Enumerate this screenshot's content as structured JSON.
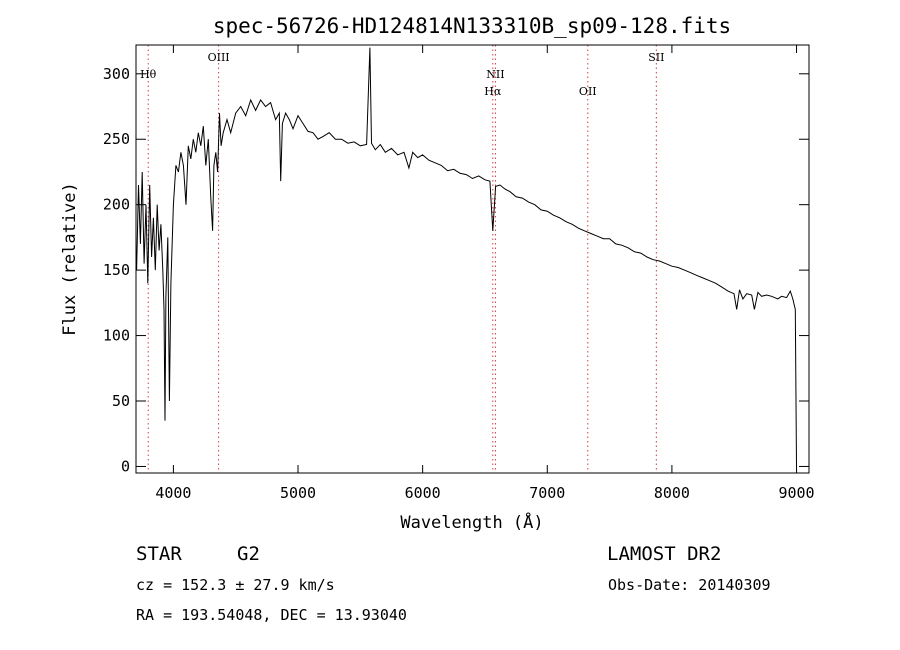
{
  "chart_data": {
    "type": "line",
    "title": "spec-56726-HD124814N133310B_sp09-128.fits",
    "xlabel": "Wavelength (Å)",
    "ylabel": "Flux (relative)",
    "xlim": [
      3700,
      9100
    ],
    "ylim": [
      -5,
      322
    ],
    "x_ticks": [
      4000,
      5000,
      6000,
      7000,
      8000,
      9000
    ],
    "y_ticks": [
      0,
      50,
      100,
      150,
      200,
      250,
      300
    ],
    "grid": false,
    "line_color": "#000000",
    "marker_color": "#d04040",
    "lines": [
      {
        "label": "Hθ",
        "wavelength": 3798,
        "row": 1
      },
      {
        "label": "OIII",
        "wavelength": 4363,
        "row": 0
      },
      {
        "label": "NII",
        "wavelength": 6584,
        "row": 1
      },
      {
        "label": "Hα",
        "wavelength": 6563,
        "row": 2
      },
      {
        "label": "OII",
        "wavelength": 7325,
        "row": 2
      },
      {
        "label": "SII",
        "wavelength": 7875,
        "row": 0
      }
    ],
    "series": [
      {
        "x": [
          3705,
          3720,
          3735,
          3750,
          3765,
          3780,
          3795,
          3810,
          3825,
          3840,
          3855,
          3870,
          3885,
          3900,
          3915,
          3925,
          3933,
          3940,
          3955,
          3968,
          3980,
          4000,
          4020,
          4040,
          4060,
          4080,
          4101,
          4120,
          4140,
          4160,
          4180,
          4200,
          4220,
          4240,
          4260,
          4280,
          4300,
          4315,
          4325,
          4340,
          4355,
          4370,
          4383,
          4400,
          4430,
          4460,
          4500,
          4540,
          4580,
          4620,
          4660,
          4700,
          4740,
          4780,
          4820,
          4850,
          4861,
          4875,
          4900,
          4930,
          4960,
          5000,
          5040,
          5080,
          5120,
          5160,
          5200,
          5250,
          5300,
          5350,
          5400,
          5450,
          5500,
          5550,
          5577,
          5590,
          5620,
          5660,
          5700,
          5750,
          5800,
          5850,
          5890,
          5920,
          5960,
          6000,
          6050,
          6100,
          6150,
          6200,
          6250,
          6300,
          6350,
          6400,
          6450,
          6500,
          6540,
          6563,
          6585,
          6620,
          6660,
          6700,
          6750,
          6800,
          6850,
          6900,
          6950,
          7000,
          7050,
          7100,
          7150,
          7200,
          7250,
          7300,
          7350,
          7400,
          7450,
          7500,
          7550,
          7600,
          7650,
          7700,
          7750,
          7800,
          7850,
          7900,
          7950,
          8000,
          8050,
          8100,
          8150,
          8200,
          8250,
          8300,
          8350,
          8400,
          8450,
          8498,
          8520,
          8542,
          8570,
          8600,
          8640,
          8662,
          8690,
          8720,
          8760,
          8800,
          8850,
          8880,
          8920,
          8950,
          8970,
          8990,
          9000
        ],
        "y": [
          150,
          215,
          170,
          225,
          155,
          200,
          140,
          215,
          160,
          190,
          150,
          200,
          165,
          185,
          150,
          120,
          35,
          130,
          175,
          50,
          140,
          200,
          230,
          225,
          240,
          230,
          200,
          245,
          235,
          250,
          240,
          255,
          245,
          260,
          230,
          250,
          205,
          180,
          230,
          240,
          225,
          270,
          245,
          255,
          265,
          255,
          270,
          275,
          268,
          280,
          272,
          280,
          275,
          278,
          265,
          270,
          218,
          262,
          270,
          265,
          258,
          268,
          262,
          256,
          255,
          250,
          252,
          255,
          250,
          250,
          247,
          248,
          245,
          246,
          320,
          247,
          242,
          246,
          240,
          243,
          238,
          240,
          228,
          240,
          236,
          238,
          234,
          232,
          230,
          226,
          227,
          224,
          223,
          220,
          222,
          219,
          218,
          180,
          214,
          215,
          212,
          210,
          206,
          205,
          202,
          200,
          196,
          195,
          192,
          190,
          187,
          185,
          182,
          180,
          178,
          176,
          174,
          174,
          170,
          169,
          167,
          164,
          163,
          160,
          158,
          157,
          155,
          153,
          152,
          150,
          148,
          146,
          144,
          142,
          140,
          137,
          134,
          132,
          120,
          135,
          128,
          132,
          131,
          120,
          133,
          130,
          131,
          130,
          128,
          130,
          129,
          134,
          128,
          120,
          0
        ]
      }
    ]
  },
  "info": {
    "object_type": "STAR",
    "subclass": "G2",
    "survey": "LAMOST DR2",
    "cz": "cz = 152.3 ± 27.9 km/s",
    "obs_date": "Obs-Date: 20140309",
    "coords": "RA = 193.54048, DEC =  13.93040"
  }
}
